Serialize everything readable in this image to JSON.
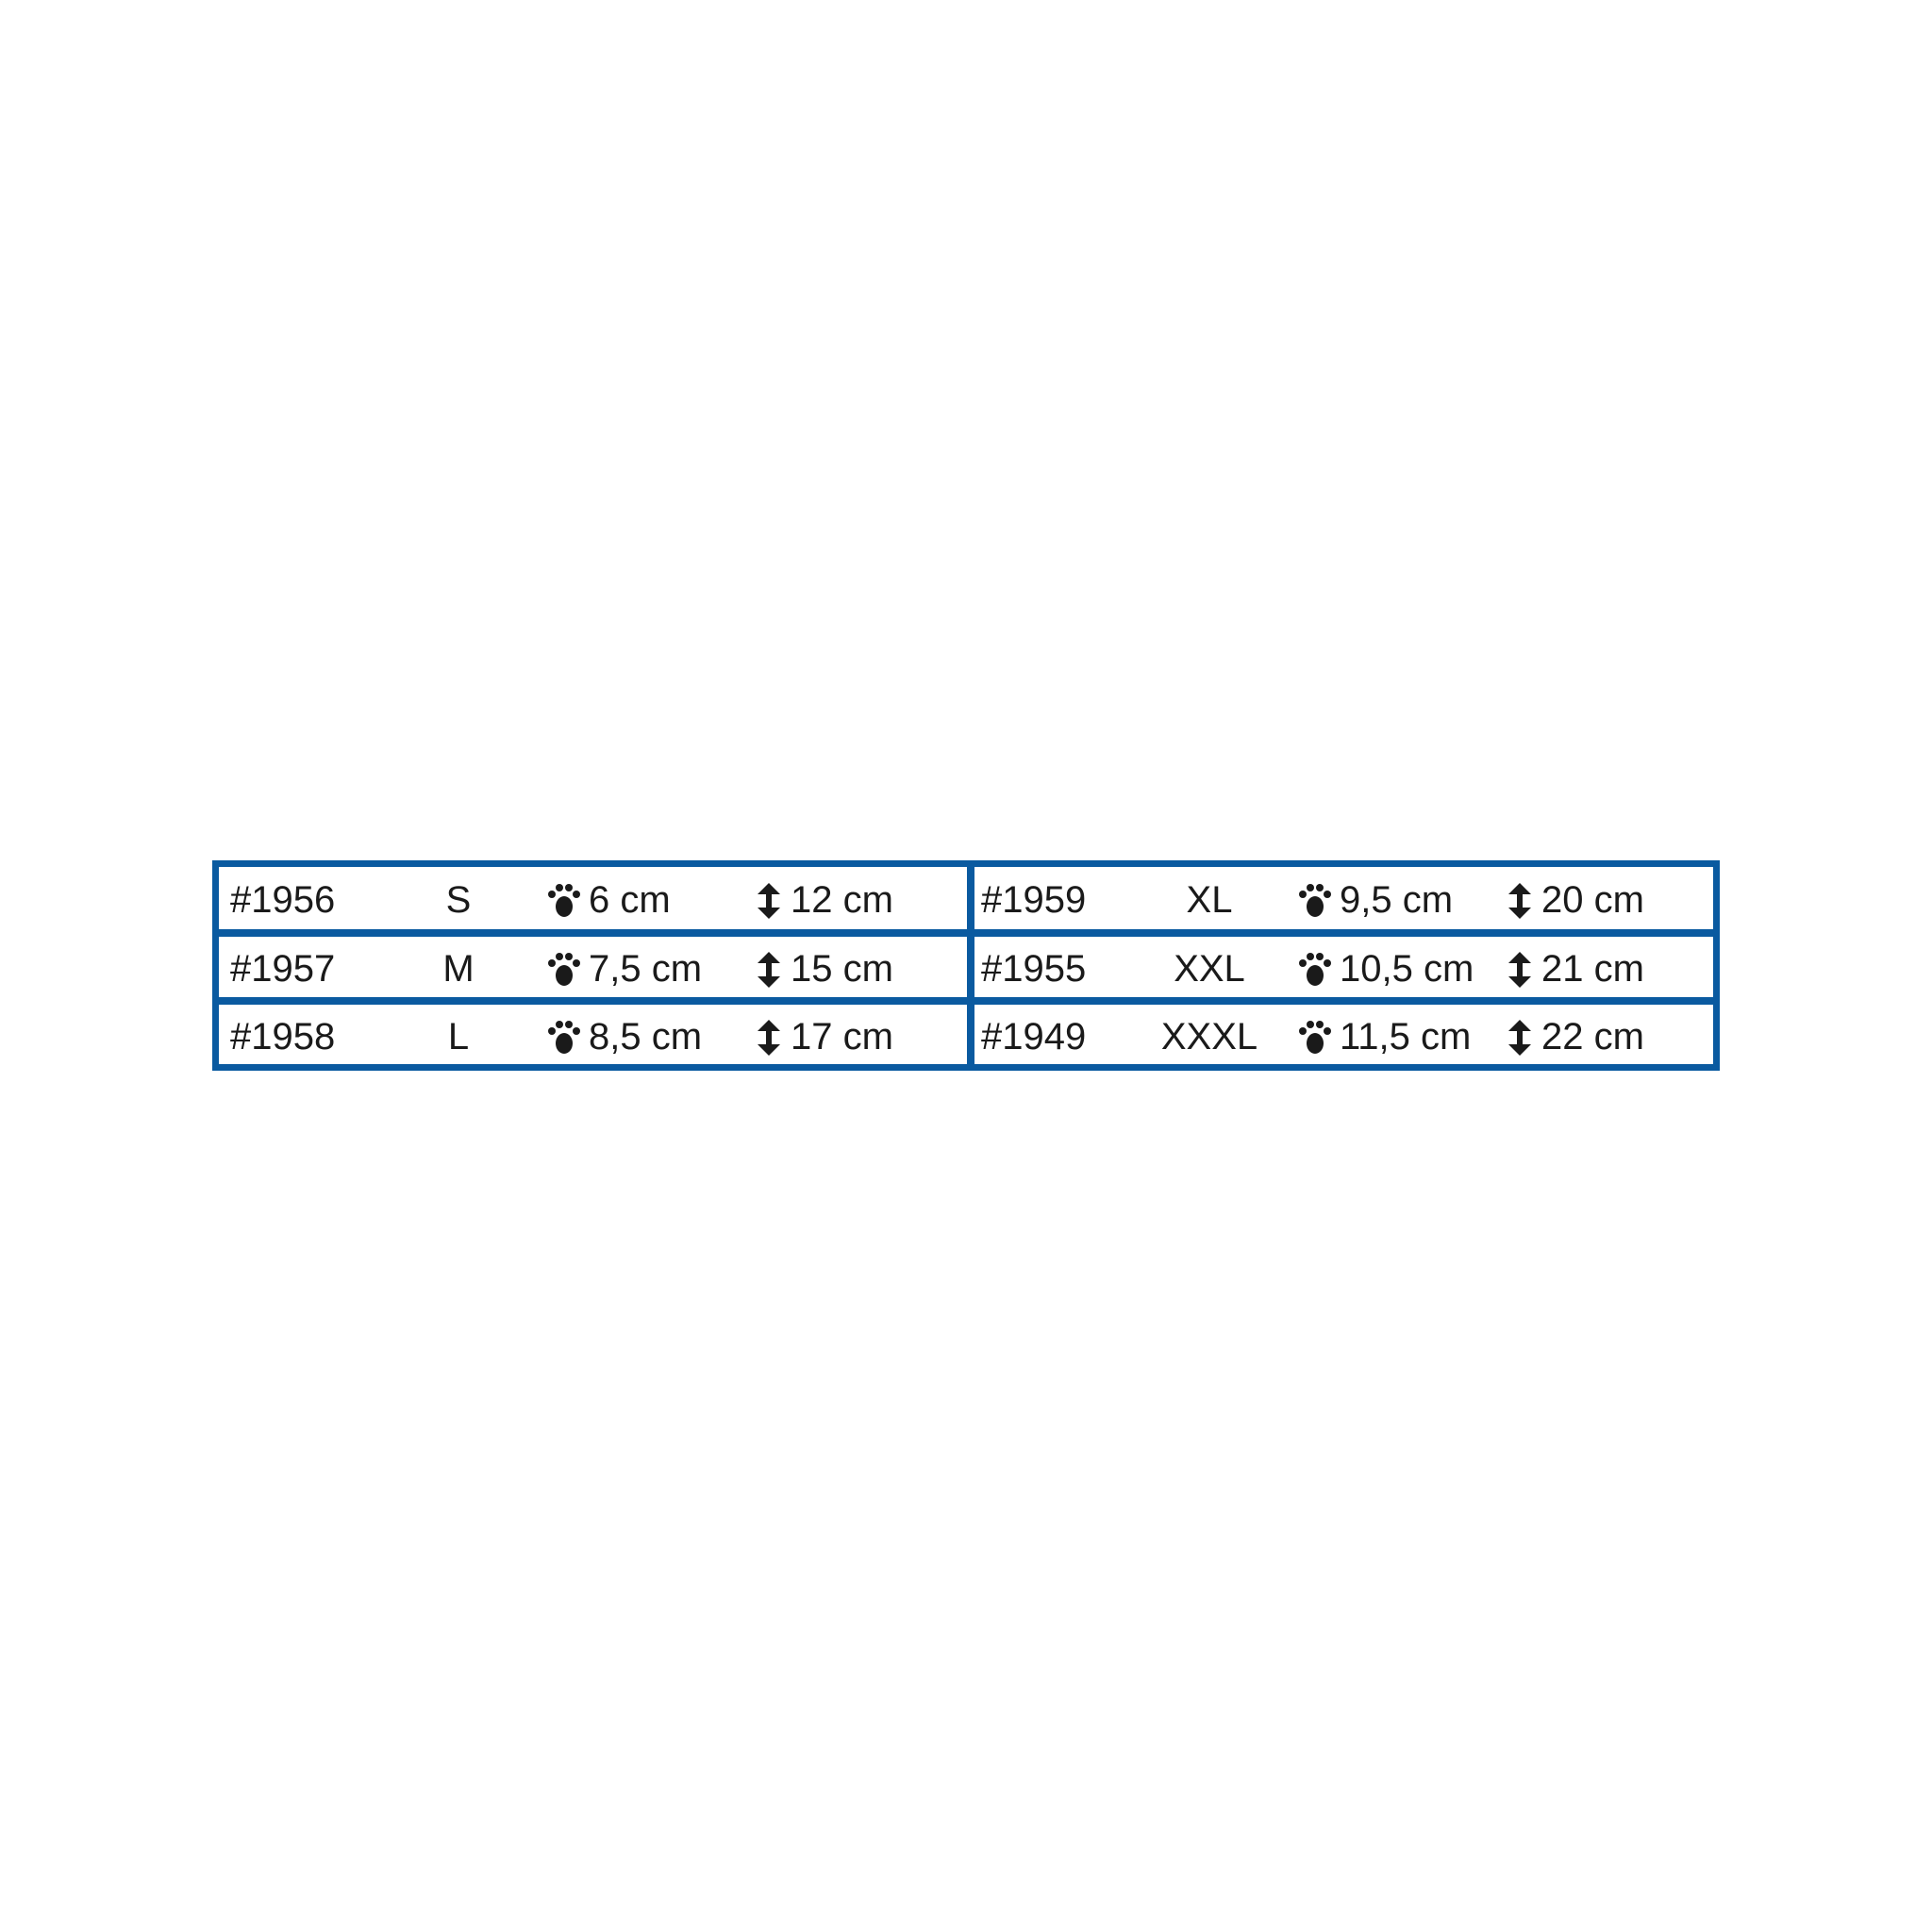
{
  "colors": {
    "border": "#0a5aa0",
    "text": "#1a1a1a"
  },
  "icons": {
    "paw": "paw-icon",
    "height": "vertical-arrow-icon"
  },
  "left": [
    {
      "code": "#1956",
      "size": "S",
      "paw": "6 cm",
      "height": "12 cm"
    },
    {
      "code": "#1957",
      "size": "M",
      "paw": "7,5 cm",
      "height": "15 cm"
    },
    {
      "code": "#1958",
      "size": "L",
      "paw": "8,5 cm",
      "height": "17 cm"
    }
  ],
  "right": [
    {
      "code": "#1959",
      "size": "XL",
      "paw": "9,5 cm",
      "height": "20 cm"
    },
    {
      "code": "#1955",
      "size": "XXL",
      "paw": "10,5 cm",
      "height": "21 cm"
    },
    {
      "code": "#1949",
      "size": "XXXL",
      "paw": "11,5 cm",
      "height": "22 cm"
    }
  ]
}
